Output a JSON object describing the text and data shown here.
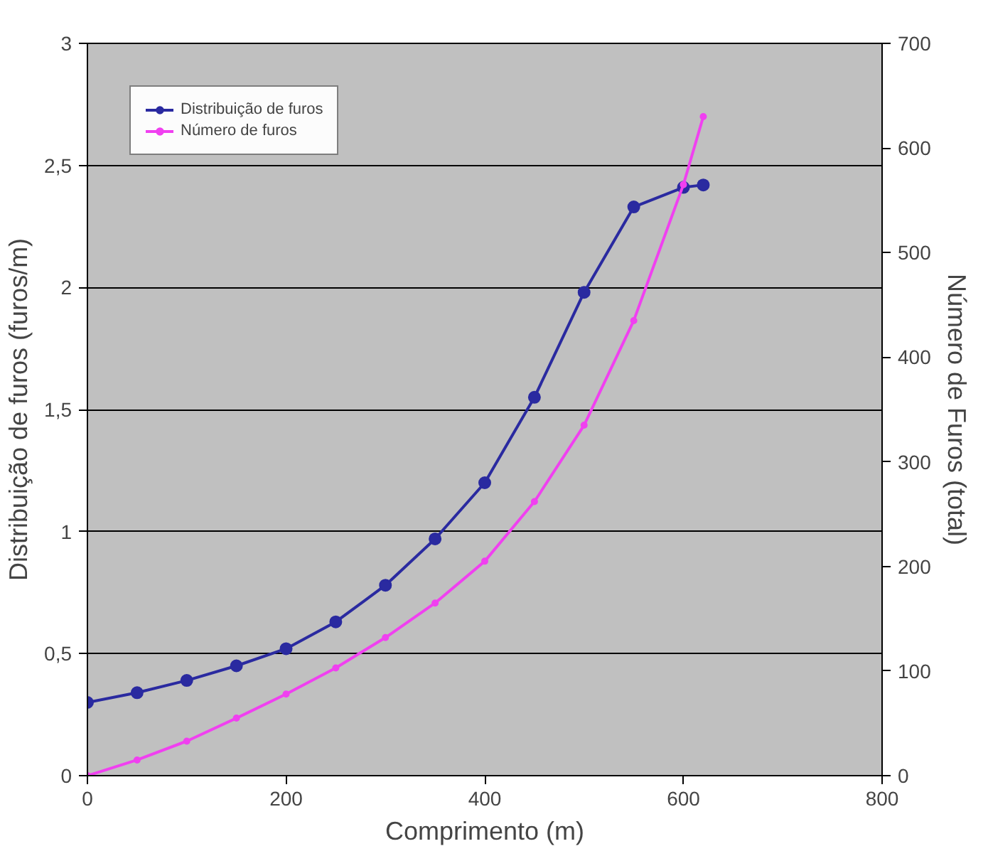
{
  "chart_data": {
    "type": "line",
    "xlabel": "Comprimento (m)",
    "ylabel": "Distribuição de furos (furos/m)",
    "y2label": "Número de Furos (total)",
    "x": [
      0,
      50,
      100,
      150,
      200,
      250,
      300,
      350,
      400,
      450,
      500,
      550,
      600,
      620
    ],
    "series": [
      {
        "name": "Distribuição de furos",
        "color": "#2a2aa0",
        "values": [
          0.3,
          0.34,
          0.39,
          0.45,
          0.52,
          0.63,
          0.78,
          0.97,
          1.2,
          1.55,
          1.98,
          2.33,
          2.41,
          2.42
        ]
      },
      {
        "name": "Número de furos",
        "color": "#f040f0",
        "axis": "y2",
        "values": [
          0,
          15,
          33,
          55,
          78,
          103,
          132,
          165,
          205,
          262,
          335,
          435,
          565,
          630
        ]
      }
    ],
    "xlim": [
      0,
      800
    ],
    "xticks": [
      0,
      200,
      400,
      600,
      800
    ],
    "ylim": [
      0,
      3
    ],
    "yticks": [
      0,
      {
        "value": 0.5,
        "label": "0,5"
      },
      1,
      {
        "value": 1.5,
        "label": "1,5"
      },
      2,
      {
        "value": 2.5,
        "label": "2,5"
      },
      3
    ],
    "y2lim": [
      0,
      700
    ],
    "y2ticks": [
      0,
      100,
      200,
      300,
      400,
      500,
      600,
      700
    ],
    "grid": "y",
    "legend": "top left",
    "marker": "circle"
  }
}
